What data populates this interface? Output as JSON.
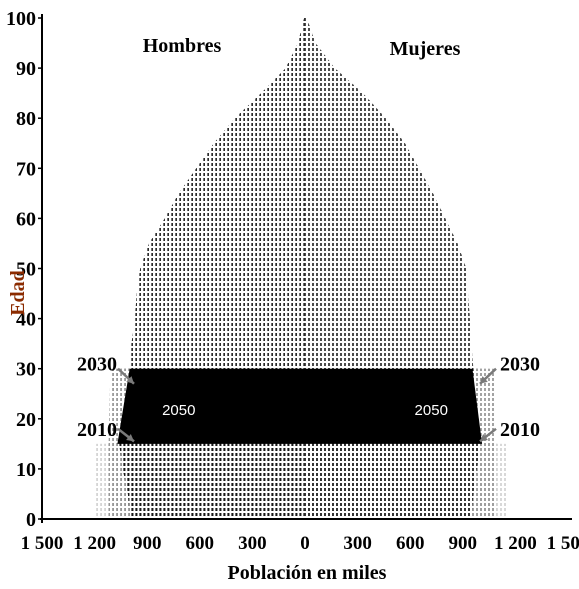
{
  "chart_data": {
    "type": "population-pyramid",
    "xlabel": "Población en miles",
    "ylabel": "Edad",
    "x_ticks": [
      {
        "value": -1500,
        "label": "1 500"
      },
      {
        "value": -1200,
        "label": "1 200"
      },
      {
        "value": -900,
        "label": "900"
      },
      {
        "value": -600,
        "label": "600"
      },
      {
        "value": -300,
        "label": "300"
      },
      {
        "value": 0,
        "label": "0"
      },
      {
        "value": 300,
        "label": "300"
      },
      {
        "value": 600,
        "label": "600"
      },
      {
        "value": 900,
        "label": "900"
      },
      {
        "value": 1200,
        "label": "1 200"
      },
      {
        "value": 1500,
        "label": "1 500"
      }
    ],
    "y_ticks": [
      0,
      10,
      20,
      30,
      40,
      50,
      60,
      70,
      80,
      90,
      100
    ],
    "xlim": [
      -1500,
      1500
    ],
    "ylim": [
      0,
      100
    ],
    "side_labels": {
      "left": "Hombres",
      "right": "Mujeres"
    },
    "series": [
      {
        "name": "2010",
        "color": "#c8c8c8",
        "ages": [
          0,
          15,
          15.5
        ],
        "male": [
          1200,
          1200,
          0
        ],
        "female": [
          1150,
          1150,
          0
        ]
      },
      {
        "name": "2030",
        "color": "#8c8c8c",
        "ages": [
          0,
          15,
          30,
          30.5
        ],
        "male": [
          1120,
          1120,
          1110,
          0
        ],
        "female": [
          1090,
          1090,
          1080,
          0
        ]
      },
      {
        "name": "2050",
        "color": "#000000",
        "ages": [
          0,
          5,
          10,
          15,
          20,
          25,
          30,
          35,
          40,
          45,
          50,
          55,
          60,
          65,
          70,
          75,
          80,
          85,
          90,
          95,
          100
        ],
        "male": [
          1000,
          1010,
          1040,
          1060,
          1040,
          1020,
          1000,
          990,
          970,
          960,
          940,
          890,
          800,
          720,
          620,
          520,
          400,
          250,
          110,
          40,
          5
        ],
        "female": [
          950,
          960,
          980,
          1000,
          990,
          970,
          960,
          950,
          940,
          930,
          920,
          870,
          800,
          730,
          650,
          570,
          460,
          330,
          170,
          60,
          10
        ]
      }
    ],
    "annotations": [
      {
        "label": "2030",
        "side": "left",
        "age": 28
      },
      {
        "label": "2010",
        "side": "left",
        "age": 16
      },
      {
        "label": "2030",
        "side": "right",
        "age": 28
      },
      {
        "label": "2010",
        "side": "right",
        "age": 17
      },
      {
        "label": "2050",
        "side": "left",
        "age": 22
      },
      {
        "label": "2050",
        "side": "right",
        "age": 22
      }
    ],
    "highlight_band": {
      "age_from": 15,
      "age_to": 30,
      "color": "#000000"
    },
    "colors": {
      "stripe": "#000000",
      "background": "#ffffff",
      "axis": "#000000"
    }
  }
}
